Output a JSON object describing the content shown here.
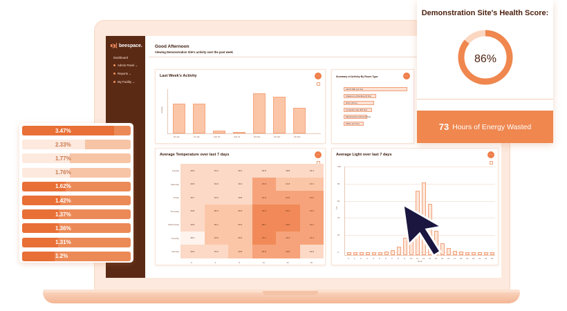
{
  "sidebar": {
    "brand": "beespace.",
    "items": [
      {
        "label": "Dashboard"
      },
      {
        "label": "Admin Panel ⌄"
      },
      {
        "label": "Reports ⌄"
      },
      {
        "label": "My Facility ⌄"
      }
    ]
  },
  "header": {
    "greeting": "Good Afternoon",
    "subtitle": "Viewing Demonstration Site's activity over the past week"
  },
  "activity": {
    "title": "Last Week's Activity",
    "ylabel": "Activity",
    "categories": [
      "20 Jan",
      "21 Jan",
      "Feb 20",
      "Feb 21",
      "20 Feb",
      "21 Feb",
      "22 Feb"
    ],
    "values": [
      55,
      55,
      5,
      3,
      75,
      68,
      48
    ],
    "ymax": 80
  },
  "rooms": {
    "title": "Summary of Activity By Room Type",
    "items": [
      {
        "label": "LECTURE (14 hrs)",
        "value": 100
      },
      {
        "label": "Classroom (Flexible) (8 hrs)",
        "value": 42
      },
      {
        "label": "WCC (8 hrs)",
        "value": 38
      },
      {
        "label": "Computer Lab (6/0 hrs)",
        "value": 35
      },
      {
        "label": "Meeting Room/Area (6 hrs)",
        "value": 26
      },
      {
        "label": "Office (4.2 hrs)",
        "value": 19
      }
    ]
  },
  "temperature": {
    "title": "Average Temperature over last 7 days",
    "days": [
      "Sunday",
      "Saturday",
      "Friday",
      "Thursday",
      "Wednesday",
      "Tuesday",
      "Monday"
    ],
    "hours": [
      "0",
      "4",
      "8",
      "12",
      "16",
      "20"
    ],
    "cells": [
      [
        "19.9",
        "19.2",
        "18.1",
        "18.8",
        "18.8",
        "19.4"
      ],
      [
        "19.9",
        "19.9",
        "19.4",
        "21.8",
        "21.8",
        "21.3"
      ],
      [
        "19.7",
        "19.3",
        "19.8",
        "21.9",
        "21.8",
        "21.9"
      ],
      [
        "19.8",
        "20.3",
        "20.3",
        "21.3",
        "21.9",
        "21.9"
      ],
      [
        "19.9",
        "20.1",
        "20.3",
        "20.1",
        "20.5",
        "21.3"
      ],
      [
        "18.1",
        "19.9",
        "20.3",
        "21.1",
        "20.4",
        "21.4"
      ],
      [
        "18.3",
        "19.3",
        "19.8",
        "20.8",
        "20.8",
        "19.8"
      ]
    ],
    "levels": [
      [
        1,
        1,
        1,
        1,
        1,
        1
      ],
      [
        1,
        1,
        1,
        3,
        2,
        2
      ],
      [
        1,
        1,
        1,
        3,
        3,
        3
      ],
      [
        1,
        2,
        2,
        4,
        4,
        3
      ],
      [
        1,
        2,
        2,
        4,
        4,
        3
      ],
      [
        0,
        2,
        2,
        4,
        3,
        3
      ],
      [
        1,
        1,
        2,
        3,
        3,
        1
      ]
    ]
  },
  "light": {
    "title": "Average Light over last 7 days",
    "ylabel": "Lux",
    "xlabel": "Hour",
    "y_ticks": [
      "100",
      "80",
      "60",
      "40",
      "20",
      "0"
    ],
    "x_ticks": [
      "0",
      "1",
      "2",
      "3",
      "4",
      "5",
      "6",
      "7",
      "8",
      "9",
      "10",
      "11",
      "12",
      "13",
      "14",
      "15",
      "16",
      "17",
      "18",
      "19",
      "20",
      "21",
      "22",
      "23"
    ],
    "values": [
      3,
      3,
      3,
      3,
      3,
      3,
      4,
      6,
      10,
      20,
      40,
      75,
      85,
      60,
      28,
      14,
      8,
      5,
      4,
      3,
      3,
      3,
      3,
      3
    ]
  },
  "usage": {
    "rows": [
      {
        "label": "3.47%",
        "fill": 0.85
      },
      {
        "label": "2.33%",
        "fill": 0.58
      },
      {
        "label": "1.77%",
        "fill": 0.44
      },
      {
        "label": "1.76%",
        "fill": 0.44
      },
      {
        "label": "1.62%",
        "fill": 0.4
      },
      {
        "label": "1.42%",
        "fill": 0.35
      },
      {
        "label": "1.37%",
        "fill": 0.34
      },
      {
        "label": "1.36%",
        "fill": 0.34
      },
      {
        "label": "1.31%",
        "fill": 0.33
      },
      {
        "label": "1.2%",
        "fill": 0.3
      }
    ]
  },
  "health": {
    "title": "Demonstration Site's Health Score:",
    "score": "86%",
    "score_value": 0.86,
    "energy_value": "73",
    "energy_label": "Hours of Energy Wasted"
  },
  "colors": {
    "accent": "#ef874f",
    "accent_dark": "#e86f36",
    "sidebar": "#5a2a15",
    "light_fill": "#fce2d4"
  }
}
